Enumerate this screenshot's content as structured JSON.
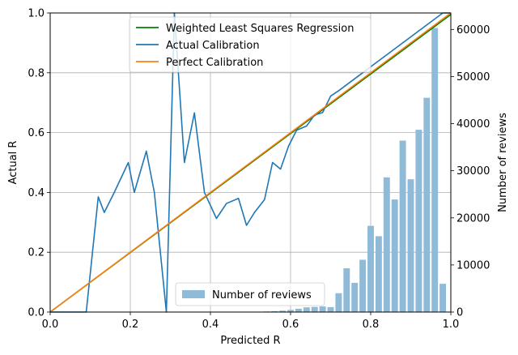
{
  "chart_data": {
    "type": "bar+line",
    "xlabel": "Predicted R",
    "ylabel_left": "Actual R",
    "ylabel_right": "Number of reviews",
    "xlim": [
      0,
      1.0
    ],
    "ylim_left": [
      0,
      1.0
    ],
    "ylim_right": [
      0,
      63500
    ],
    "xticks": [
      "0.0",
      "0.2",
      "0.4",
      "0.6",
      "0.8",
      "1.0"
    ],
    "yticks_left": [
      "0.0",
      "0.2",
      "0.4",
      "0.6",
      "0.8",
      "1.0"
    ],
    "yticks_right": [
      "0",
      "10000",
      "20000",
      "30000",
      "40000",
      "50000",
      "60000"
    ],
    "grid": true,
    "colors": {
      "wls": "#008000",
      "actual": "#1f77b4",
      "perfect": "#ff7f0e",
      "bars": "#8fbbd9",
      "grid": "#b0b0b0"
    },
    "bars": {
      "name": "Number of reviews",
      "x": [
        0.5,
        0.52,
        0.54,
        0.56,
        0.58,
        0.6,
        0.62,
        0.64,
        0.66,
        0.68,
        0.7,
        0.72,
        0.74,
        0.76,
        0.78,
        0.8,
        0.82,
        0.84,
        0.86,
        0.88,
        0.9,
        0.92,
        0.94,
        0.96,
        0.98
      ],
      "values": [
        50,
        80,
        120,
        200,
        300,
        450,
        700,
        1000,
        1100,
        1200,
        1050,
        4000,
        9300,
        6200,
        11100,
        18300,
        16100,
        28600,
        23900,
        36400,
        28200,
        38700,
        45500,
        60300,
        6000
      ]
    },
    "series": [
      {
        "name": "Weighted Least Squares Regression",
        "x": [
          0,
          1.0
        ],
        "y": [
          0,
          0.995
        ]
      },
      {
        "name": "Actual Calibration",
        "x": [
          0.0,
          0.03,
          0.06,
          0.09,
          0.12,
          0.135,
          0.16,
          0.195,
          0.21,
          0.24,
          0.26,
          0.29,
          0.31,
          0.335,
          0.36,
          0.385,
          0.415,
          0.44,
          0.47,
          0.49,
          0.51,
          0.535,
          0.555,
          0.575,
          0.595,
          0.615,
          0.64,
          0.66,
          0.68,
          0.7,
          0.72,
          0.74,
          0.76,
          0.78,
          0.8,
          0.82,
          0.84,
          0.86,
          0.88,
          0.9,
          0.92,
          0.94,
          0.96,
          0.98,
          1.0
        ],
        "y": [
          0.0,
          0.0,
          0.0,
          0.0,
          0.385,
          0.333,
          0.4,
          0.5,
          0.4,
          0.538,
          0.4,
          0.0,
          1.0,
          0.5,
          0.666,
          0.4,
          0.313,
          0.363,
          0.38,
          0.29,
          0.333,
          0.376,
          0.5,
          0.478,
          0.555,
          0.608,
          0.622,
          0.659,
          0.667,
          0.722,
          0.74,
          0.76,
          0.78,
          0.8,
          0.82,
          0.84,
          0.86,
          0.88,
          0.9,
          0.92,
          0.94,
          0.96,
          0.98,
          1.0,
          1.0
        ]
      },
      {
        "name": "Perfect Calibration",
        "x": [
          0,
          1.0
        ],
        "y": [
          0,
          1.0
        ]
      }
    ],
    "legend_top": {
      "placement": "top-center",
      "entries": [
        "Weighted Least Squares Regression",
        "Actual Calibration",
        "Perfect Calibration"
      ]
    },
    "legend_bottom": {
      "placement": "lower-center",
      "entries": [
        "Number of reviews"
      ]
    }
  }
}
